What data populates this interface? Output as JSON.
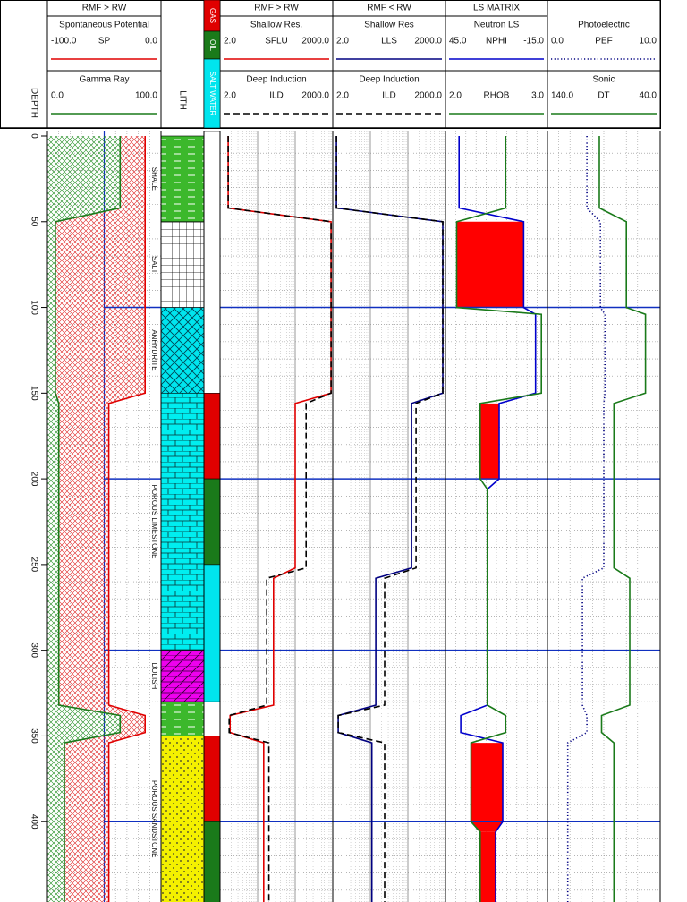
{
  "chart_data": {
    "type": "well-log",
    "depth_label": "DEPTH",
    "ylim": [
      0,
      450
    ],
    "yticks": [
      0,
      50,
      100,
      150,
      200,
      250,
      300,
      350,
      400
    ],
    "minor_ticks": [
      10,
      20,
      30,
      40,
      60,
      70,
      80,
      90,
      110,
      120,
      130,
      140,
      160,
      170,
      180,
      190,
      210,
      220,
      230,
      240,
      260,
      270,
      280,
      290,
      310,
      320,
      330,
      340,
      360,
      370,
      380,
      390,
      410,
      420,
      430,
      440
    ],
    "major_lines": [
      100,
      200,
      300,
      400
    ],
    "depth": [
      0,
      42,
      50,
      100,
      104,
      150,
      156,
      200,
      206,
      252,
      258,
      332,
      338,
      348,
      354,
      400,
      406,
      450
    ],
    "lithology": {
      "label": "LITH",
      "intervals": [
        {
          "top": 0,
          "base": 50,
          "pattern": "shale",
          "label": "SHALE"
        },
        {
          "top": 50,
          "base": 100,
          "pattern": "salt",
          "label": "SALT"
        },
        {
          "top": 100,
          "base": 150,
          "pattern": "anhydrite",
          "label": "ANHYDRITE"
        },
        {
          "top": 150,
          "base": 300,
          "pattern": "limestone",
          "label": "POROUS LIMESTONE"
        },
        {
          "top": 300,
          "base": 330,
          "pattern": "dolomite",
          "label": "DOLISH"
        },
        {
          "top": 330,
          "base": 350,
          "pattern": "shale",
          "label": null
        },
        {
          "top": 350,
          "base": 450,
          "pattern": "sandstone",
          "label": "POROUS SANDSTONE"
        }
      ]
    },
    "fluids": {
      "legend": [
        {
          "name": "GAS",
          "color": "#e00000"
        },
        {
          "name": "OIL",
          "color": "#1a7a1a"
        },
        {
          "name": "SALT WATER",
          "color": "#00e5ee"
        }
      ],
      "intervals": [
        {
          "top": 150,
          "base": 200,
          "color": "#e00000"
        },
        {
          "top": 200,
          "base": 250,
          "color": "#1a7a1a"
        },
        {
          "top": 250,
          "base": 330,
          "color": "#00e5ee"
        },
        {
          "top": 350,
          "base": 400,
          "color": "#e00000"
        },
        {
          "top": 400,
          "base": 450,
          "color": "#1a7a1a"
        }
      ]
    },
    "tracks": [
      {
        "title": "RMF > RW",
        "fill": "sp-gr",
        "log": false,
        "curves": [
          {
            "title": "Spontaneous Potential",
            "name": "SP",
            "scale": [
              {
                "value": -100,
                "label": "-100.0"
              },
              {
                "value": 0,
                "label": "0.0"
              }
            ],
            "color": "#e00000",
            "style": "solid",
            "values": [
              -14,
              -14,
              -14,
              -14,
              -14,
              -14,
              -46,
              -46,
              -46,
              -46,
              -46,
              -46,
              -14,
              -14,
              -46,
              -46,
              -46,
              -46
            ]
          },
          {
            "title": "Gamma Ray",
            "scale": [
              {
                "value": 0,
                "label": "0.0"
              },
              {
                "value": 100,
                "label": "100.0"
              }
            ],
            "color": "#1a7a1a",
            "style": "solid",
            "values": [
              64,
              64,
              7,
              7,
              7,
              7,
              10,
              10,
              10,
              10,
              10,
              10,
              64,
              64,
              15,
              15,
              15,
              15
            ]
          }
        ]
      },
      {
        "title": "RMF > RW",
        "log": true,
        "curves": [
          {
            "title": "Shallow Res.",
            "name": "SFLU",
            "scale": [
              {
                "value": 2,
                "label": "2.0"
              },
              {
                "value": 2000,
                "label": "2000.0"
              }
            ],
            "color": "#e00000",
            "style": "solid",
            "values": [
              3.3,
              3.3,
              1800,
              1800,
              1800,
              1800,
              200,
              200,
              200,
              200,
              53,
              53,
              3.7,
              3.7,
              29,
              29,
              29,
              29
            ]
          },
          {
            "title": "Deep Induction",
            "name": "ILD",
            "scale": [
              {
                "value": 2,
                "label": "2.0"
              },
              {
                "value": 2000,
                "label": "2000.0"
              }
            ],
            "color": "#000000",
            "style": "dashed",
            "values": [
              3.3,
              3.3,
              1800,
              1800,
              1800,
              1800,
              390,
              390,
              390,
              390,
              35,
              35,
              3.5,
              3.5,
              40,
              40,
              40,
              40
            ]
          }
        ]
      },
      {
        "title": "RMF < RW",
        "log": true,
        "curves": [
          {
            "title": "Shallow Res",
            "name": "LLS",
            "scale": [
              {
                "value": 2,
                "label": "2.0"
              },
              {
                "value": 2000,
                "label": "2000.0"
              }
            ],
            "color": "#000080",
            "style": "solid",
            "values": [
              2.5,
              2.5,
              1700,
              1700,
              1700,
              1700,
              250,
              250,
              250,
              250,
              28,
              28,
              2.8,
              2.8,
              22,
              22,
              22,
              22
            ]
          },
          {
            "title": "Deep Induction",
            "name": "ILD",
            "scale": [
              {
                "value": 2,
                "label": "2.0"
              },
              {
                "value": 2000,
                "label": "2000.0"
              }
            ],
            "color": "#000000",
            "style": "dashed",
            "values": [
              2.5,
              2.5,
              1700,
              1700,
              1700,
              1700,
              330,
              330,
              330,
              330,
              48,
              48,
              2.8,
              2.8,
              48,
              48,
              48,
              48
            ]
          }
        ]
      },
      {
        "title": "LS MATRIX",
        "fill": "crossover",
        "log": false,
        "curves": [
          {
            "title": "Neutron LS",
            "name": "NPHI",
            "scale": [
              {
                "value": 45,
                "label": "45.0"
              },
              {
                "value": -15,
                "label": "-15.0"
              }
            ],
            "color": "#0000cc",
            "style": "solid",
            "values": [
              37,
              37,
              -1,
              -1,
              -8,
              -8,
              13.4,
              13.4,
              20.3,
              20.3,
              20.3,
              20.3,
              36,
              36,
              11.3,
              11.3,
              15.5,
              15.5
            ]
          },
          {
            "name": "RHOB",
            "scale": [
              {
                "value": 2,
                "label": "2.0"
              },
              {
                "value": 3,
                "label": "3.0"
              }
            ],
            "color": "#1a7a1a",
            "style": "solid",
            "values": [
              2.59,
              2.59,
              2.11,
              2.11,
              2.94,
              2.94,
              2.34,
              2.34,
              2.41,
              2.41,
              2.41,
              2.41,
              2.59,
              2.59,
              2.25,
              2.25,
              2.34,
              2.34
            ]
          }
        ]
      },
      {
        "log": false,
        "curves": [
          {
            "title": "Photoelectric",
            "name": "PEF",
            "scale": [
              {
                "value": 0,
                "label": "0.0"
              },
              {
                "value": 10,
                "label": "10.0"
              }
            ],
            "color": "#000080",
            "style": "dotted",
            "values": [
              3.5,
              3.5,
              4.7,
              4.7,
              5.1,
              5.1,
              5.0,
              5.0,
              5.0,
              5.0,
              3.1,
              3.1,
              3.5,
              3.5,
              1.8,
              1.8,
              1.8,
              1.8
            ]
          },
          {
            "title": "Sonic",
            "name": "DT",
            "scale": [
              {
                "value": 140,
                "label": "140.0"
              },
              {
                "value": 40,
                "label": "40.0"
              }
            ],
            "color": "#1a7a1a",
            "style": "solid",
            "values": [
              94,
              94,
              70,
              70,
              53,
              53,
              81,
              81,
              81,
              81,
              67,
              67,
              92,
              92,
              81,
              81,
              81,
              81
            ]
          }
        ]
      }
    ]
  }
}
